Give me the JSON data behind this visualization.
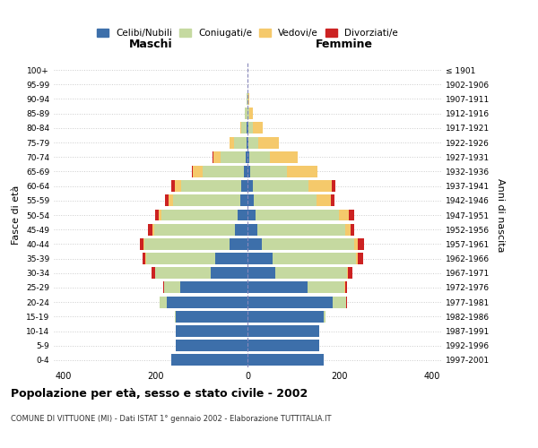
{
  "age_groups": [
    "0-4",
    "5-9",
    "10-14",
    "15-19",
    "20-24",
    "25-29",
    "30-34",
    "35-39",
    "40-44",
    "45-49",
    "50-54",
    "55-59",
    "60-64",
    "65-69",
    "70-74",
    "75-79",
    "80-84",
    "85-89",
    "90-94",
    "95-99",
    "100+"
  ],
  "birth_years": [
    "1997-2001",
    "1992-1996",
    "1987-1991",
    "1982-1986",
    "1977-1981",
    "1972-1976",
    "1967-1971",
    "1962-1966",
    "1957-1961",
    "1952-1956",
    "1947-1951",
    "1942-1946",
    "1937-1941",
    "1932-1936",
    "1927-1931",
    "1922-1926",
    "1917-1921",
    "1912-1916",
    "1907-1911",
    "1902-1906",
    "≤ 1901"
  ],
  "maschi": {
    "celibi": [
      165,
      155,
      155,
      155,
      175,
      145,
      80,
      70,
      38,
      28,
      22,
      16,
      14,
      8,
      4,
      2,
      1,
      0,
      0,
      0,
      0
    ],
    "coniugati": [
      0,
      0,
      0,
      2,
      15,
      35,
      120,
      150,
      185,
      175,
      165,
      145,
      130,
      90,
      55,
      28,
      12,
      5,
      1,
      0,
      0
    ],
    "vedovi": [
      0,
      0,
      0,
      0,
      0,
      0,
      1,
      2,
      2,
      4,
      5,
      10,
      14,
      20,
      15,
      8,
      3,
      1,
      0,
      0,
      0
    ],
    "divorziati": [
      0,
      0,
      0,
      0,
      1,
      2,
      8,
      5,
      8,
      8,
      8,
      8,
      8,
      2,
      1,
      0,
      0,
      0,
      0,
      0,
      0
    ]
  },
  "femmine": {
    "nubili": [
      165,
      155,
      155,
      165,
      185,
      130,
      60,
      55,
      32,
      22,
      18,
      14,
      12,
      6,
      3,
      2,
      1,
      0,
      0,
      0,
      0
    ],
    "coniugate": [
      0,
      0,
      1,
      5,
      28,
      80,
      155,
      180,
      200,
      190,
      180,
      135,
      120,
      80,
      45,
      22,
      10,
      4,
      1,
      0,
      0
    ],
    "vedove": [
      0,
      0,
      0,
      0,
      1,
      2,
      3,
      5,
      8,
      12,
      22,
      32,
      50,
      65,
      60,
      45,
      22,
      8,
      2,
      0,
      0
    ],
    "divorziate": [
      0,
      0,
      0,
      0,
      1,
      3,
      10,
      10,
      12,
      8,
      12,
      8,
      8,
      1,
      0,
      0,
      0,
      0,
      0,
      0,
      0
    ]
  },
  "colors": {
    "celibi_nubili": "#3d6faa",
    "coniugati": "#c5d9a0",
    "vedovi": "#f5c96b",
    "divorziati": "#cc2222"
  },
  "xlim": 420,
  "title": "Popolazione per età, sesso e stato civile - 2002",
  "subtitle": "COMUNE DI VITTUONE (MI) - Dati ISTAT 1° gennaio 2002 - Elaborazione TUTTITALIA.IT",
  "ylabel_left": "Fasce di età",
  "ylabel_right": "Anni di nascita",
  "xlabel_maschi": "Maschi",
  "xlabel_femmine": "Femmine",
  "bg_color": "#ffffff",
  "grid_color": "#cccccc"
}
